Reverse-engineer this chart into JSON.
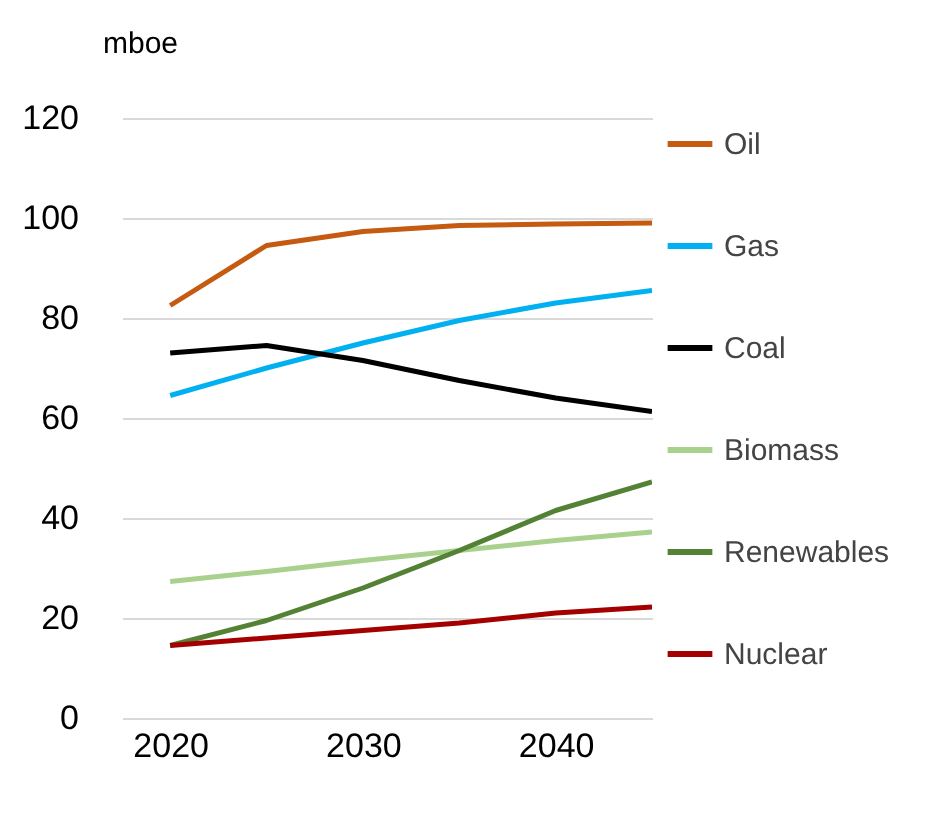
{
  "chart_data": {
    "type": "line",
    "ylabel": "mboe",
    "x": [
      2020,
      2025,
      2030,
      2035,
      2040,
      2045
    ],
    "xlim": [
      2017.5,
      2045
    ],
    "xticks": [
      2020,
      2030,
      2040
    ],
    "ylim": [
      0,
      120
    ],
    "yticks": [
      0,
      20,
      40,
      60,
      80,
      100,
      120
    ],
    "grid": "y",
    "legend": "right",
    "marker": "none",
    "line_style": "solid",
    "series": [
      {
        "name": "Oil",
        "color": "#c55a11",
        "values": [
          82.5,
          94.5,
          97.3,
          98.5,
          98.8,
          99
        ]
      },
      {
        "name": "Gas",
        "color": "#00b0f0",
        "values": [
          64.5,
          70,
          75,
          79.5,
          83,
          85.5
        ]
      },
      {
        "name": "Coal",
        "color": "#000000",
        "values": [
          73,
          74.5,
          71.5,
          67.5,
          64,
          61.3
        ]
      },
      {
        "name": "Biomass",
        "color": "#a9d18e",
        "values": [
          27.3,
          29.3,
          31.5,
          33.5,
          35.5,
          37.2
        ]
      },
      {
        "name": "Renewables",
        "color": "#548235",
        "values": [
          14.5,
          19.5,
          26,
          33.5,
          41.5,
          47.2
        ]
      },
      {
        "name": "Nuclear",
        "color": "#a50000",
        "values": [
          14.5,
          16,
          17.5,
          19,
          21,
          22.2
        ]
      }
    ]
  }
}
